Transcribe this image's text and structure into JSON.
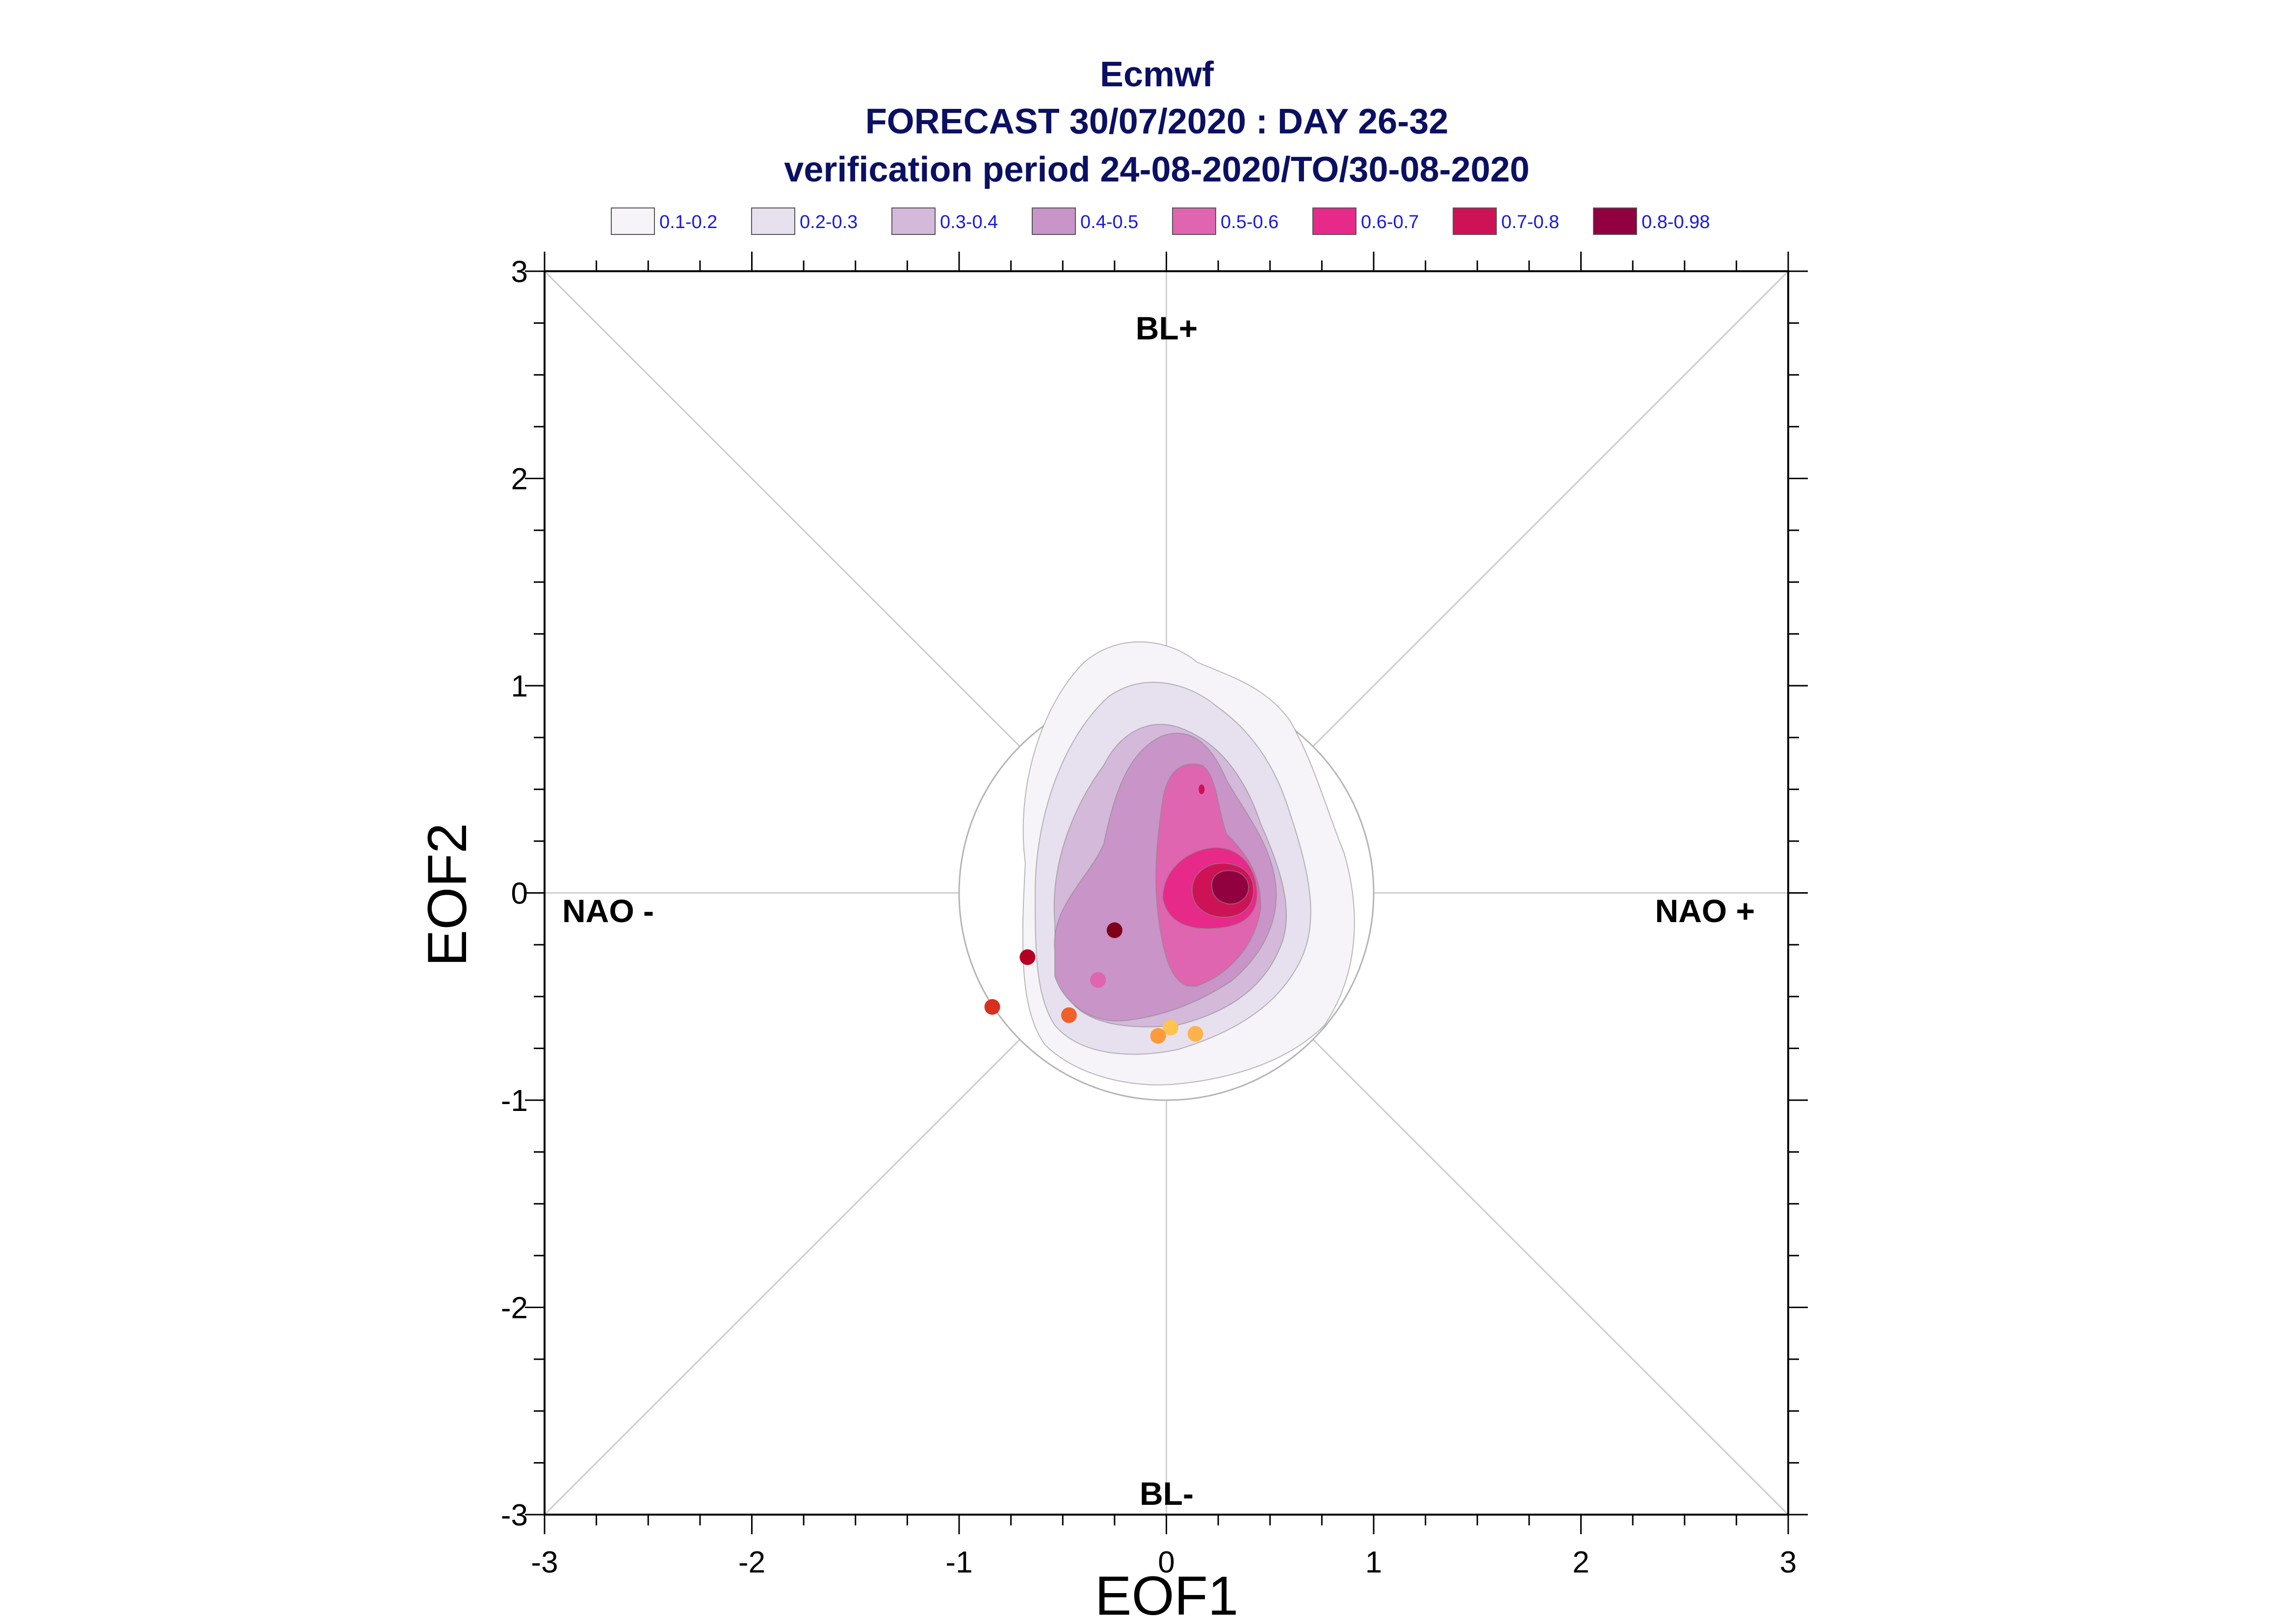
{
  "chart_data": {
    "type": "contour",
    "title_lines": [
      "Ecmwf",
      "FORECAST 30/07/2020 : DAY 26-32",
      "verification period 24-08-2020/TO/30-08-2020"
    ],
    "xlabel": "EOF1",
    "ylabel": "EOF2",
    "xlim": [
      -3,
      3
    ],
    "ylim": [
      -3,
      3
    ],
    "x_ticks": [
      "-3",
      "-2",
      "-1",
      "0",
      "1",
      "2",
      "3"
    ],
    "y_ticks": [
      "-3",
      "-2",
      "-1",
      "0",
      "1",
      "2",
      "3"
    ],
    "regime_labels": {
      "top": "BL+",
      "bottom": "BL-",
      "left": "NAO -",
      "right": "NAO +"
    },
    "reference_circle_radius": 1.0,
    "legend": [
      {
        "label": "0.1-0.2",
        "color": "#f7f4f9"
      },
      {
        "label": "0.2-0.3",
        "color": "#e7e1ef"
      },
      {
        "label": "0.3-0.4",
        "color": "#d4b9da"
      },
      {
        "label": "0.4-0.5",
        "color": "#c994c7"
      },
      {
        "label": "0.5-0.6",
        "color": "#df65b0"
      },
      {
        "label": "0.6-0.7",
        "color": "#e7298a"
      },
      {
        "label": "0.7-0.8",
        "color": "#ce1256"
      },
      {
        "label": "0.8-0.98",
        "color": "#91003f"
      }
    ],
    "density_center": [
      0.32,
      0.02
    ],
    "points": [
      {
        "x": -0.84,
        "y": -0.55,
        "color": "#d7301f"
      },
      {
        "x": -0.67,
        "y": -0.31,
        "color": "#b30022"
      },
      {
        "x": -0.47,
        "y": -0.59,
        "color": "#f0602a"
      },
      {
        "x": -0.25,
        "y": -0.18,
        "color": "#7f0018"
      },
      {
        "x": -0.33,
        "y": -0.42,
        "color": "#df65b0"
      },
      {
        "x": 0.02,
        "y": -0.65,
        "color": "#fec44f"
      },
      {
        "x": -0.04,
        "y": -0.69,
        "color": "#fd9a3c"
      },
      {
        "x": 0.14,
        "y": -0.68,
        "color": "#feb24c"
      }
    ]
  }
}
